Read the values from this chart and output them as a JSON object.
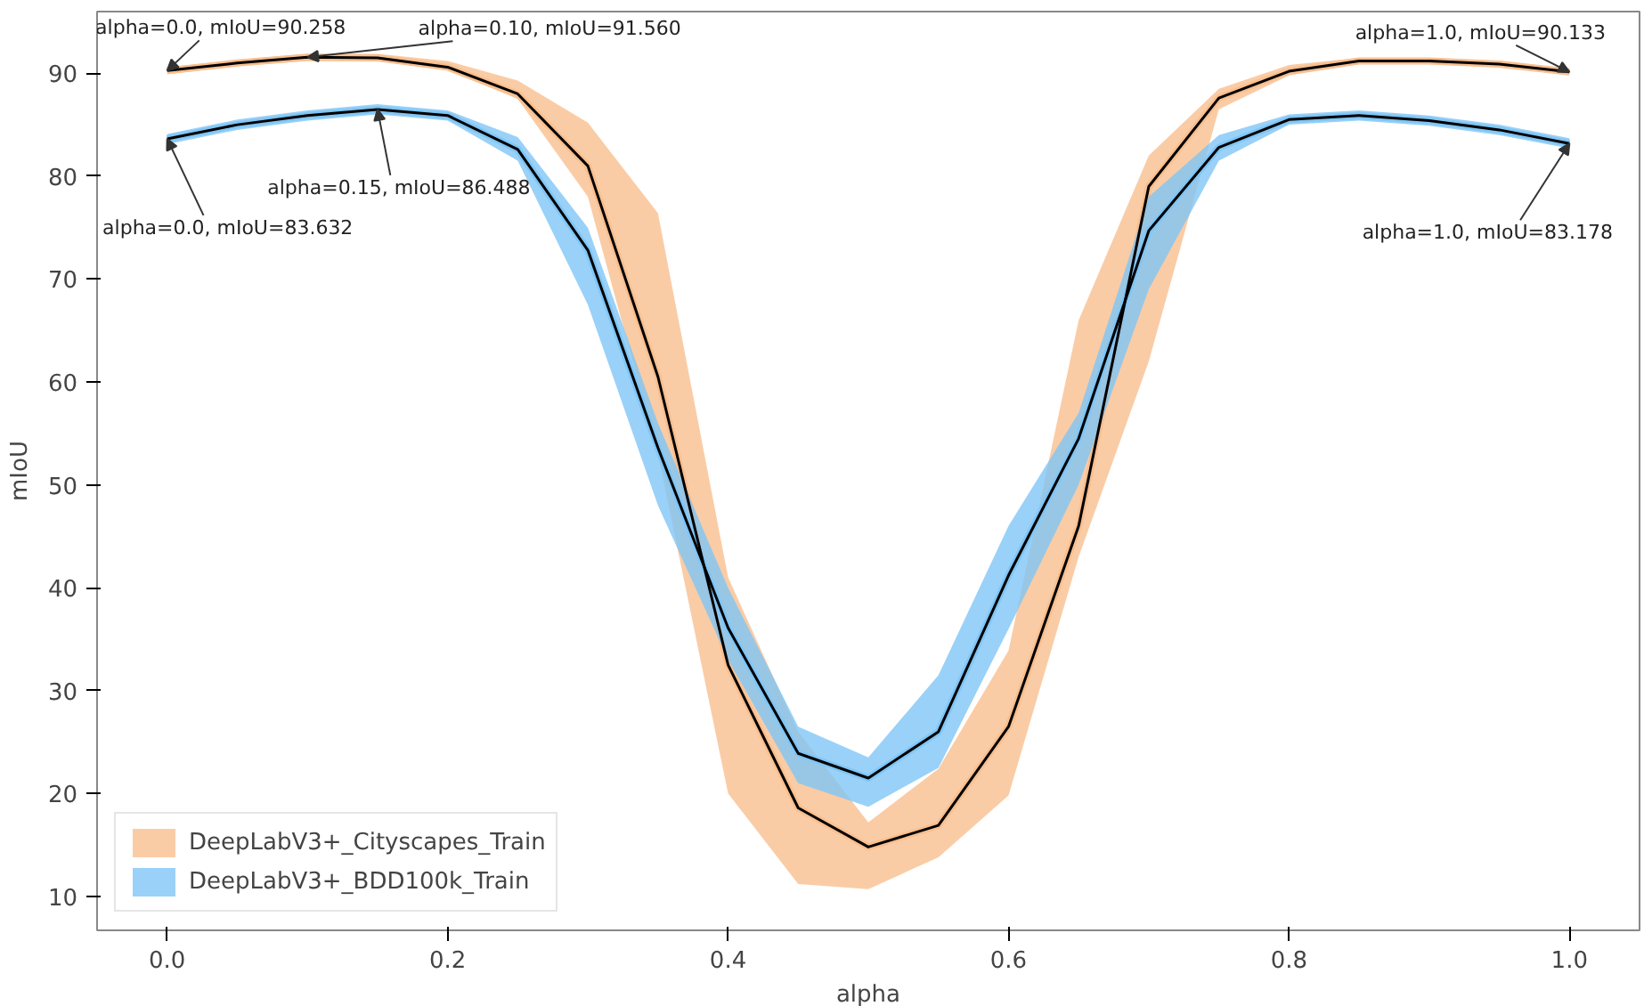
{
  "chart_data": {
    "type": "line",
    "xlabel": "alpha",
    "ylabel": "mIoU",
    "x": [
      0.0,
      0.05,
      0.1,
      0.15,
      0.2,
      0.25,
      0.3,
      0.35,
      0.4,
      0.45,
      0.5,
      0.55,
      0.6,
      0.65,
      0.7,
      0.75,
      0.8,
      0.85,
      0.9,
      0.95,
      1.0
    ],
    "series": [
      {
        "name": "DeepLabV3+_Cityscapes_Train",
        "color": "#f9bf8f",
        "values": [
          90.258,
          91.0,
          91.56,
          91.5,
          90.6,
          88,
          81,
          60.5,
          32.5,
          18.6,
          14.8,
          16.9,
          26.5,
          46,
          79,
          87.6,
          90.2,
          91.2,
          91.2,
          90.9,
          90.133
        ],
        "lower": [
          89.9,
          90.7,
          91.2,
          91.2,
          90.3,
          87.5,
          78,
          53,
          20,
          11.2,
          10.7,
          13.8,
          19.8,
          43,
          62,
          86.5,
          89.8,
          90.9,
          90.9,
          90.6,
          89.9
        ],
        "upper": [
          90.6,
          91.3,
          91.9,
          91.9,
          91.2,
          89.3,
          85.2,
          76.4,
          41,
          26,
          17.2,
          22.4,
          33.9,
          66,
          82,
          88.5,
          90.8,
          91.5,
          91.5,
          91.2,
          90.4
        ]
      },
      {
        "name": "DeepLabV3+_BDD100k_Train",
        "color": "#80c6f6",
        "values": [
          83.632,
          85.0,
          85.9,
          86.488,
          85.9,
          82.6,
          72.8,
          53.6,
          36.1,
          23.9,
          21.5,
          26,
          41.2,
          54.5,
          74.7,
          82.8,
          85.5,
          85.9,
          85.4,
          84.5,
          83.178
        ],
        "lower": [
          83.1,
          84.5,
          85.4,
          86.0,
          85.4,
          81.5,
          67.5,
          48,
          33,
          21,
          18.7,
          22.5,
          36,
          50,
          69,
          81.5,
          85,
          85.4,
          84.9,
          84,
          82.7
        ],
        "upper": [
          84.1,
          85.5,
          86.4,
          87.0,
          86.4,
          83.8,
          75,
          56,
          40,
          26.5,
          23.5,
          31.5,
          46,
          57,
          78,
          84,
          86,
          86.4,
          85.9,
          85,
          83.7
        ]
      },
      {
        "type": "line",
        "color": "#000000",
        "values": [
          90.258,
          91.0,
          91.56,
          91.5,
          90.6,
          88,
          81,
          60.5,
          32.5,
          18.6,
          14.8,
          16.9,
          26.5,
          46,
          79,
          87.6,
          90.2,
          91.2,
          91.2,
          90.9,
          90.133
        ]
      },
      {
        "type": "line",
        "color": "#000000",
        "values": [
          83.632,
          85.0,
          85.9,
          86.488,
          85.9,
          82.6,
          72.8,
          53.6,
          36.1,
          23.9,
          21.5,
          26,
          41.2,
          54.5,
          74.7,
          82.8,
          85.5,
          85.9,
          85.4,
          84.5,
          83.178
        ]
      }
    ],
    "xlim": [
      -0.05,
      1.05
    ],
    "ylim": [
      6.7,
      96
    ],
    "xticks": [
      {
        "value": 0,
        "label": "0.0"
      },
      0.2,
      0.4,
      0.6,
      0.8,
      {
        "value": 1,
        "label": "1.0"
      }
    ],
    "yticks": [
      10,
      20,
      30,
      40,
      50,
      60,
      70,
      80,
      90
    ],
    "grid": false,
    "legend": "bottom left",
    "annotations": [
      {
        "text": "alpha=0.0, mIoU=90.258",
        "x": 0.0,
        "y": 90.258
      },
      {
        "text": "alpha=0.10, mIoU=91.560",
        "x": 0.1,
        "y": 91.56
      },
      {
        "text": "alpha=0.0, mIoU=83.632",
        "x": 0.0,
        "y": 83.632
      },
      {
        "text": "alpha=0.15, mIoU=86.488",
        "x": 0.15,
        "y": 86.488
      },
      {
        "text": "alpha=1.0, mIoU=90.133",
        "x": 1.0,
        "y": 90.133
      },
      {
        "text": "alpha=1.0, mIoU=83.178",
        "x": 1.0,
        "y": 83.178
      }
    ]
  }
}
